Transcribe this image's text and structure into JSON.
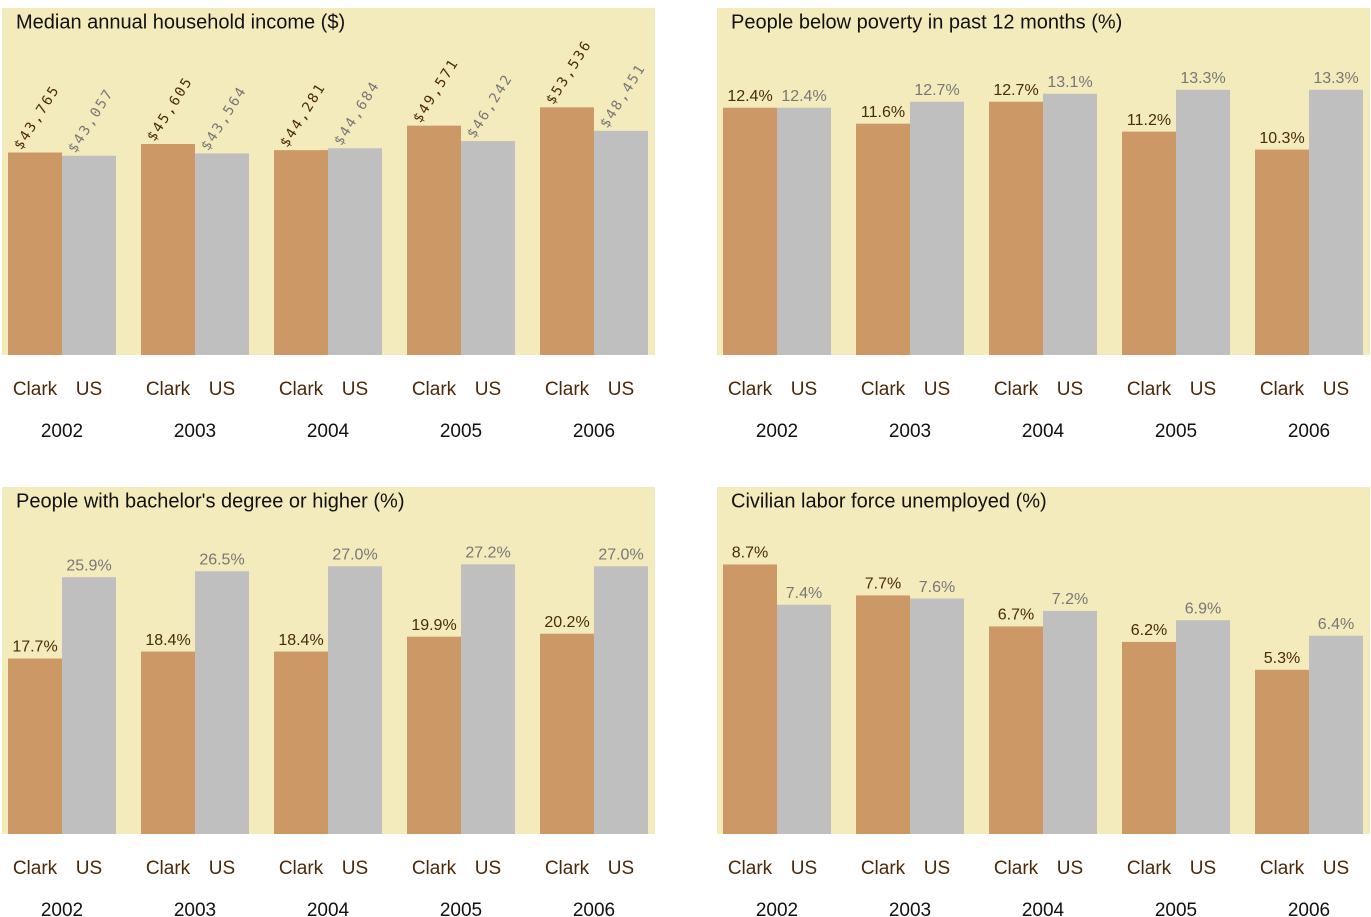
{
  "chart_data": [
    {
      "type": "bar",
      "title": "Median annual household income ($)",
      "categories": [
        "2002",
        "2003",
        "2004",
        "2005",
        "2006"
      ],
      "series": [
        {
          "name": "Clark",
          "color": "#cc9966",
          "values": [
            43765,
            45605,
            44281,
            49571,
            53536
          ],
          "value_labels": [
            "$43,765",
            "$45,605",
            "$44,281",
            "$49,571",
            "$53,536"
          ]
        },
        {
          "name": "US",
          "color": "#bfbfbf",
          "values": [
            43057,
            43564,
            44684,
            46242,
            48451
          ],
          "value_labels": [
            "$43,057",
            "$43,564",
            "$44,684",
            "$46,242",
            "$48,451"
          ]
        }
      ],
      "ylim": [
        0,
        75000
      ]
    },
    {
      "type": "bar",
      "title": "People below poverty in past 12 months (%)",
      "categories": [
        "2002",
        "2003",
        "2004",
        "2005",
        "2006"
      ],
      "series": [
        {
          "name": "Clark",
          "color": "#cc9966",
          "values": [
            12.4,
            11.6,
            12.7,
            11.2,
            10.3
          ],
          "value_labels": [
            "12.4%",
            "11.6%",
            "12.7%",
            "11.2%",
            "10.3%"
          ]
        },
        {
          "name": "US",
          "color": "#bfbfbf",
          "values": [
            12.4,
            12.7,
            13.1,
            13.3,
            13.3
          ],
          "value_labels": [
            "12.4%",
            "12.7%",
            "13.1%",
            "13.3%",
            "13.3%"
          ]
        }
      ],
      "ylim": [
        0,
        17.4
      ]
    },
    {
      "type": "bar",
      "title": "People with bachelor's degree or higher (%)",
      "categories": [
        "2002",
        "2003",
        "2004",
        "2005",
        "2006"
      ],
      "series": [
        {
          "name": "Clark",
          "color": "#cc9966",
          "values": [
            17.7,
            18.4,
            18.4,
            19.9,
            20.2
          ],
          "value_labels": [
            "17.7%",
            "18.4%",
            "18.4%",
            "19.9%",
            "20.2%"
          ]
        },
        {
          "name": "US",
          "color": "#bfbfbf",
          "values": [
            25.9,
            26.5,
            27.0,
            27.2,
            27.0
          ],
          "value_labels": [
            "25.9%",
            "26.5%",
            "27.0%",
            "27.2%",
            "27.0%"
          ]
        }
      ],
      "ylim": [
        0,
        35
      ]
    },
    {
      "type": "bar",
      "title": "Civilian labor force unemployed (%)",
      "categories": [
        "2002",
        "2003",
        "2004",
        "2005",
        "2006"
      ],
      "series": [
        {
          "name": "Clark",
          "color": "#cc9966",
          "values": [
            8.7,
            7.7,
            6.7,
            6.2,
            5.3
          ],
          "value_labels": [
            "8.7%",
            "7.7%",
            "6.7%",
            "6.2%",
            "5.3%"
          ]
        },
        {
          "name": "US",
          "color": "#bfbfbf",
          "values": [
            7.4,
            7.6,
            7.2,
            6.9,
            6.4
          ],
          "value_labels": [
            "7.4%",
            "7.6%",
            "7.2%",
            "6.9%",
            "6.4%"
          ]
        }
      ],
      "ylim": [
        0,
        11.2
      ]
    }
  ]
}
